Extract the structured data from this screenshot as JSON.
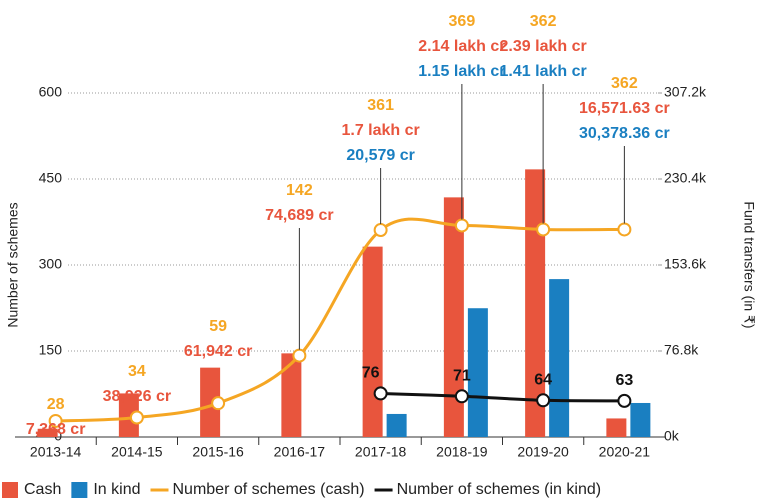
{
  "chart_data": {
    "type": "bar",
    "ylabel": "Number of schemes",
    "y2label": "Fund transfers (in ₹)",
    "categories": [
      "2013-14",
      "2014-15",
      "2015-16",
      "2016-17",
      "2017-18",
      "2018-19",
      "2019-20",
      "2020-21"
    ],
    "ylim": [
      0,
      600
    ],
    "yticks": [
      0,
      150,
      300,
      450,
      600
    ],
    "y2lim": [
      0,
      307200
    ],
    "y2ticks": [
      {
        "value": 0,
        "label": "0k"
      },
      {
        "value": 76800,
        "label": "76.8k"
      },
      {
        "value": 153600,
        "label": "153.6k"
      },
      {
        "value": 230400,
        "label": "230.4k"
      },
      {
        "value": 307200,
        "label": "307.2k"
      }
    ],
    "grid": true,
    "legend": "bottom",
    "series": [
      {
        "name": "Cash",
        "type": "bar",
        "axis": "y2",
        "color": "#e8553d",
        "values": [
          7368,
          38926,
          61942,
          74689,
          170000,
          214000,
          239000,
          16571.63
        ],
        "value_labels": [
          "7,368 cr",
          "38,926 cr",
          "61,942 cr",
          "74,689 cr",
          "1.7 lakh cr",
          "2.14 lakh cr",
          "2.39 lakh cr",
          "16,571.63 cr"
        ]
      },
      {
        "name": "In kind",
        "type": "bar",
        "axis": "y2",
        "color": "#1a7fc1",
        "values": [
          null,
          null,
          null,
          null,
          20579,
          115000,
          141000,
          30378.36
        ],
        "value_labels": [
          null,
          null,
          null,
          null,
          "20,579 cr",
          "1.15 lakh cr",
          "1.41 lakh cr",
          "30,378.36 cr"
        ]
      },
      {
        "name": "Number of schemes (cash)",
        "type": "line",
        "color": "#f5a623",
        "values": [
          28,
          34,
          59,
          142,
          361,
          369,
          362,
          362
        ]
      },
      {
        "name": "Number of schemes (in kind)",
        "type": "line",
        "color": "#111111",
        "values": [
          null,
          null,
          null,
          null,
          76,
          71,
          64,
          63
        ]
      }
    ]
  }
}
